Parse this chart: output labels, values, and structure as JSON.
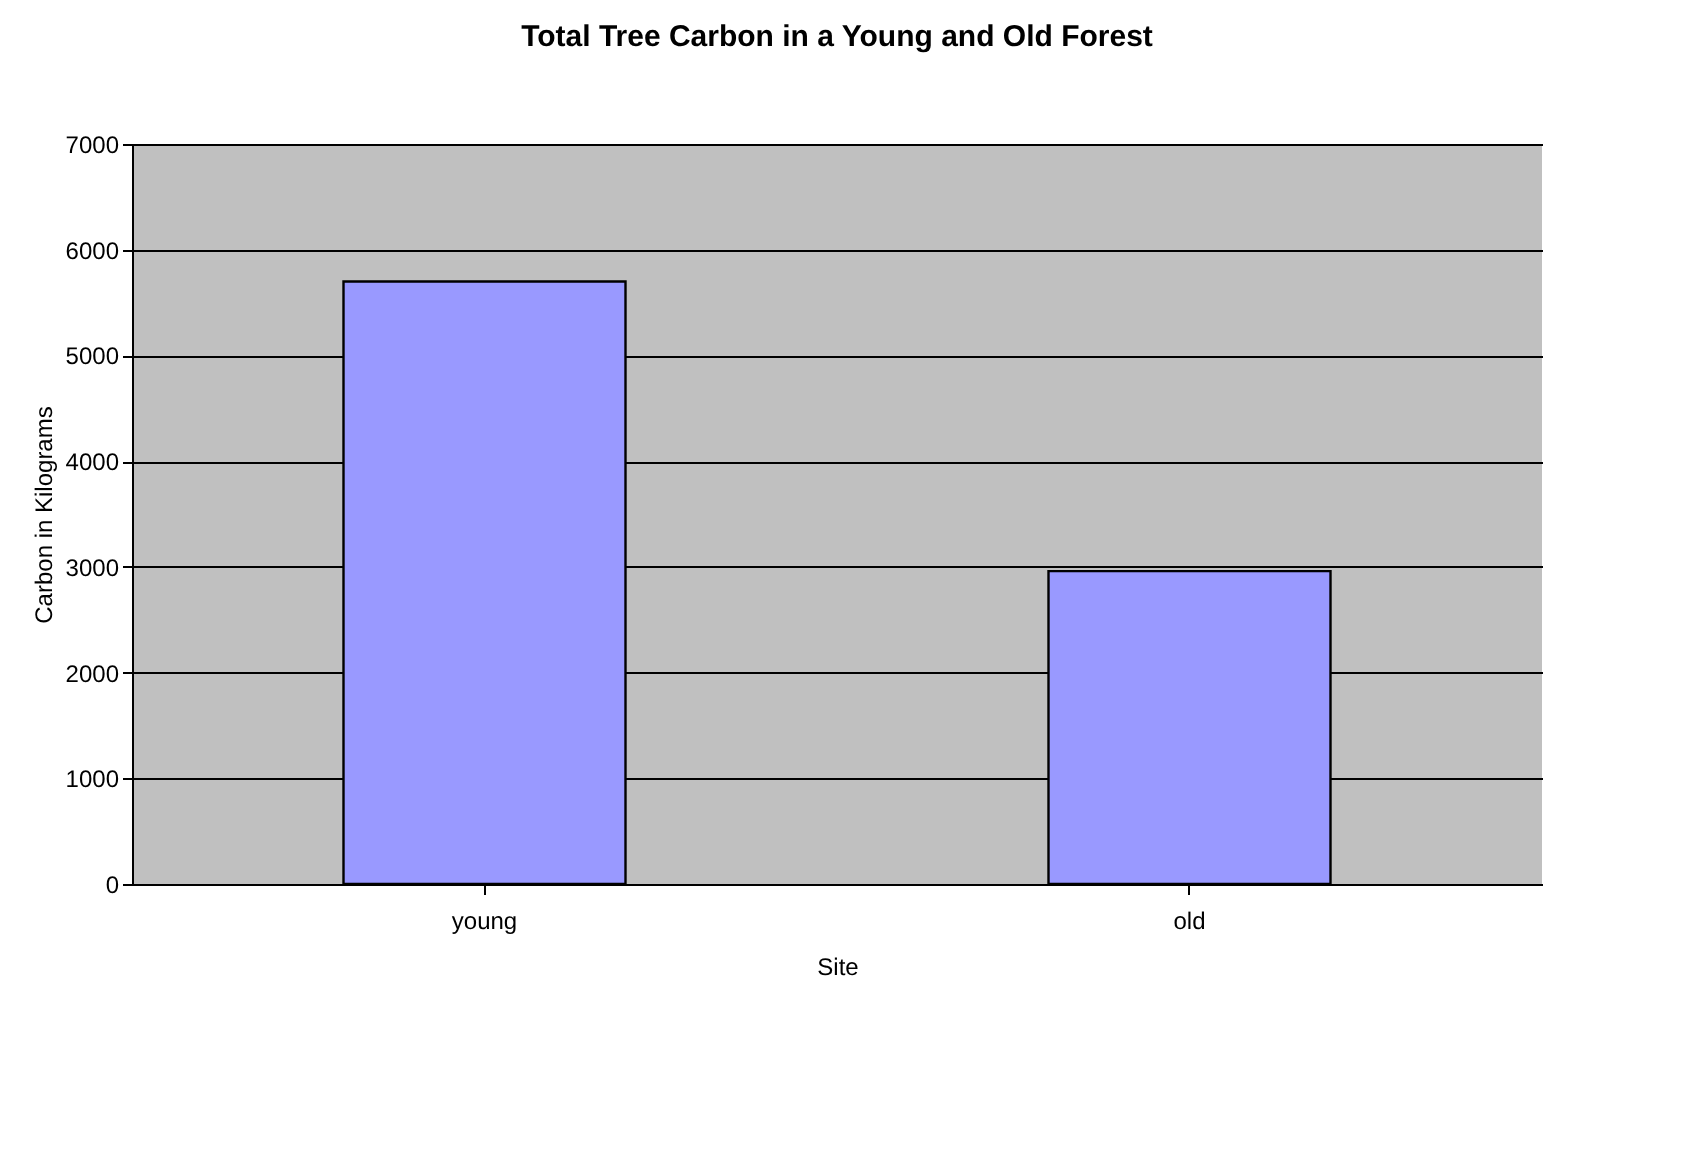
{
  "chart_data": {
    "type": "bar",
    "title": "Total Tree Carbon in a Young and Old Forest",
    "xlabel": "Site",
    "ylabel": "Carbon in Kilograms",
    "categories": [
      "young",
      "old"
    ],
    "values": [
      5700,
      2960
    ],
    "color": "#9999ff",
    "ylim": [
      0,
      7000
    ],
    "yticks": [
      0,
      1000,
      2000,
      3000,
      4000,
      5000,
      6000,
      7000
    ],
    "grid": "y"
  }
}
